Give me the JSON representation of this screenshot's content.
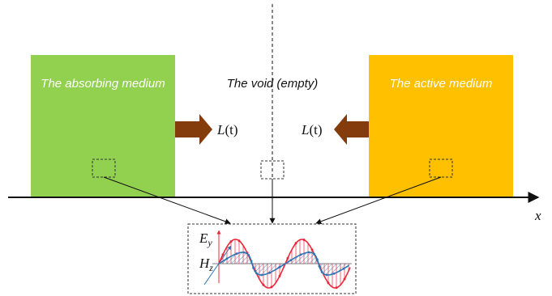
{
  "diagram": {
    "left_box_label": "The absorbing medium",
    "middle_label": "The void (empty)",
    "right_box_label": "The active medium",
    "flux_symbol": "L",
    "flux_arg": "(t)",
    "axis_label": "x",
    "field_e": "E",
    "field_e_sub": "y",
    "field_h": "H",
    "field_h_sub": "z"
  },
  "colors": {
    "absorbing_medium": "#92D050",
    "active_medium": "#FFC000",
    "arrow": "#843C0C",
    "e_wave": "#E8283A",
    "h_wave": "#2E75B6"
  }
}
